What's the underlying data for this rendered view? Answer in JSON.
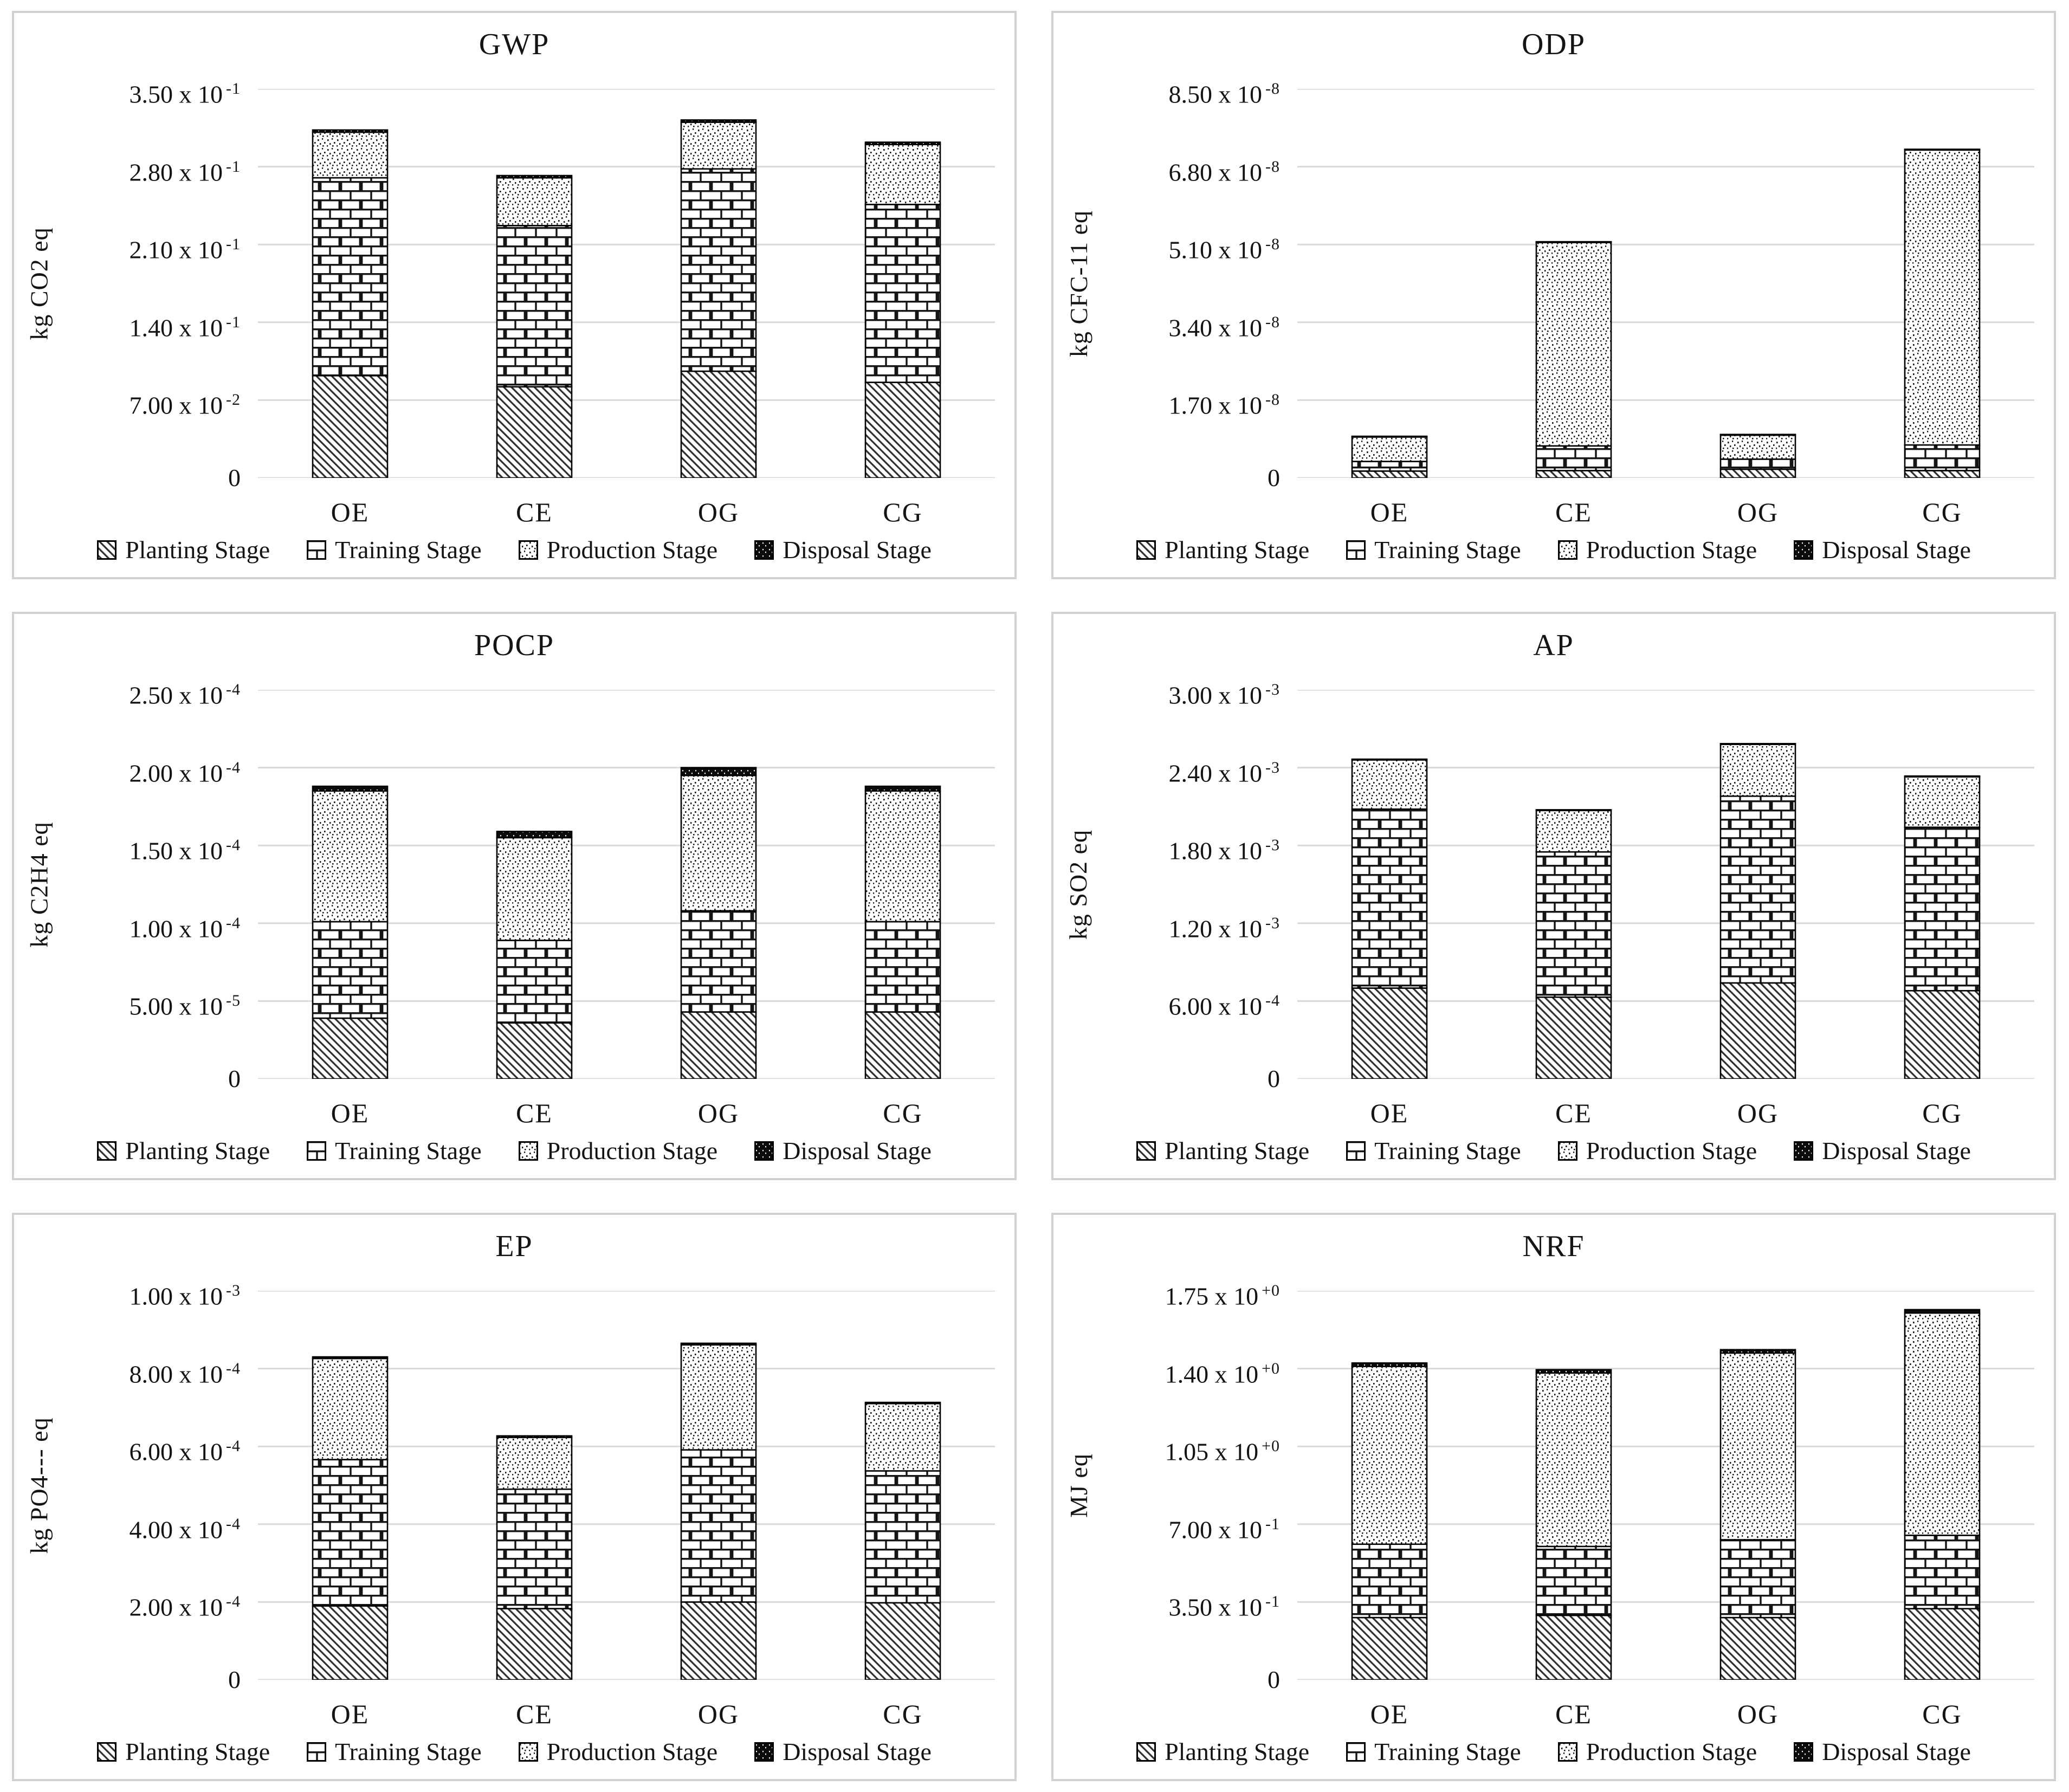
{
  "page": {
    "background": "#ffffff",
    "panel_border_color": "#d2d2d2",
    "grid_color": "#d9d9d9",
    "bar_border_color": "#000000",
    "text_color": "#141414"
  },
  "legend_position": "bottom",
  "categories": [
    "OE",
    "CE",
    "OG",
    "CG"
  ],
  "stage_patterns": {
    "planting": "diagonal-hatch",
    "training": "brick",
    "production": "speckle",
    "disposal": "solid-black"
  },
  "chart_data": [
    {
      "id": "gwp",
      "type": "bar",
      "title": "GWP",
      "ylabel": "kg CO2 eq",
      "grid": true,
      "legend_position": "bottom",
      "ymax": 0.35,
      "ylim": [
        0,
        0.35
      ],
      "categories": [
        "OE",
        "CE",
        "OG",
        "CG"
      ],
      "yticks": [
        {
          "value": 0.35,
          "m": "3.50 x 10",
          "e": "-1"
        },
        {
          "value": 0.28,
          "m": "2.80 x 10",
          "e": "-1"
        },
        {
          "value": 0.21,
          "m": "2.10 x 10",
          "e": "-1"
        },
        {
          "value": 0.14,
          "m": "1.40 x 10",
          "e": "-1"
        },
        {
          "value": 0.07,
          "m": "7.00 x 10",
          "e": "-2"
        },
        {
          "value": 0,
          "m": "0",
          "e": null
        }
      ],
      "series": [
        {
          "name": "Planting Stage",
          "pattern": "diagonal-hatch",
          "values": [
            0.092,
            0.082,
            0.096,
            0.086
          ]
        },
        {
          "name": "Training Stage",
          "pattern": "brick",
          "values": [
            0.178,
            0.145,
            0.182,
            0.16
          ]
        },
        {
          "name": "Production Stage",
          "pattern": "speckle",
          "values": [
            0.041,
            0.043,
            0.042,
            0.054
          ]
        },
        {
          "name": "Disposal Stage",
          "pattern": "solid-black",
          "values": [
            0.002,
            0.002,
            0.002,
            0.002
          ]
        }
      ]
    },
    {
      "id": "odp",
      "type": "bar",
      "title": "ODP",
      "ylabel": "kg CFC-11 eq",
      "grid": true,
      "legend_position": "bottom",
      "ymax": 8.5e-08,
      "ylim": [
        0,
        8.5e-08
      ],
      "categories": [
        "OE",
        "CE",
        "OG",
        "CG"
      ],
      "yticks": [
        {
          "value": 8.5e-08,
          "m": "8.50 x 10",
          "e": "-8"
        },
        {
          "value": 6.8e-08,
          "m": "6.80 x 10",
          "e": "-8"
        },
        {
          "value": 5.1e-08,
          "m": "5.10 x 10",
          "e": "-8"
        },
        {
          "value": 3.4e-08,
          "m": "3.40 x 10",
          "e": "-8"
        },
        {
          "value": 1.7e-08,
          "m": "1.70 x 10",
          "e": "-8"
        },
        {
          "value": 0,
          "m": "0",
          "e": null
        }
      ],
      "series": [
        {
          "name": "Planting Stage",
          "pattern": "diagonal-hatch",
          "values": [
            1.5e-09,
            1.6e-09,
            1.9e-09,
            1.6e-09
          ]
        },
        {
          "name": "Training Stage",
          "pattern": "brick",
          "values": [
            2.1e-09,
            5.4e-09,
            2.2e-09,
            5.6e-09
          ]
        },
        {
          "name": "Production Stage",
          "pattern": "speckle",
          "values": [
            5.4e-09,
            4.45e-08,
            5.3e-09,
            6.45e-08
          ]
        },
        {
          "name": "Disposal Stage",
          "pattern": "solid-black",
          "values": [
            1e-10,
            1e-10,
            1e-10,
            1e-10
          ]
        }
      ]
    },
    {
      "id": "pocp",
      "type": "bar",
      "title": "POCP",
      "ylabel": "kg C2H4 eq",
      "grid": true,
      "legend_position": "bottom",
      "ymax": 0.00025,
      "ylim": [
        0,
        0.00025
      ],
      "categories": [
        "OE",
        "CE",
        "OG",
        "CG"
      ],
      "yticks": [
        {
          "value": 0.00025,
          "m": "2.50 x 10",
          "e": "-4"
        },
        {
          "value": 0.0002,
          "m": "2.00 x 10",
          "e": "-4"
        },
        {
          "value": 0.00015,
          "m": "1.50 x 10",
          "e": "-4"
        },
        {
          "value": 0.0001,
          "m": "1.00 x 10",
          "e": "-4"
        },
        {
          "value": 5e-05,
          "m": "5.00 x 10",
          "e": "-5"
        },
        {
          "value": 0,
          "m": "0",
          "e": null
        }
      ],
      "series": [
        {
          "name": "Planting Stage",
          "pattern": "diagonal-hatch",
          "values": [
            3.9e-05,
            3.6e-05,
            4.3e-05,
            4.3e-05
          ]
        },
        {
          "name": "Training Stage",
          "pattern": "brick",
          "values": [
            6.2e-05,
            5.3e-05,
            6.5e-05,
            5.8e-05
          ]
        },
        {
          "name": "Production Stage",
          "pattern": "speckle",
          "values": [
            8.4e-05,
            6.6e-05,
            8.7e-05,
            8.4e-05
          ]
        },
        {
          "name": "Disposal Stage",
          "pattern": "solid-black",
          "values": [
            3e-06,
            4e-06,
            5e-06,
            3e-06
          ]
        }
      ]
    },
    {
      "id": "ap",
      "type": "bar",
      "title": "AP",
      "ylabel": "kg SO2 eq",
      "grid": true,
      "legend_position": "bottom",
      "ymax": 0.003,
      "ylim": [
        0,
        0.003
      ],
      "categories": [
        "OE",
        "CE",
        "OG",
        "CG"
      ],
      "yticks": [
        {
          "value": 0.003,
          "m": "3.00 x 10",
          "e": "-3"
        },
        {
          "value": 0.0024,
          "m": "2.40 x 10",
          "e": "-3"
        },
        {
          "value": 0.0018,
          "m": "1.80 x 10",
          "e": "-3"
        },
        {
          "value": 0.0012,
          "m": "1.20 x 10",
          "e": "-3"
        },
        {
          "value": 0.0006,
          "m": "6.00 x 10",
          "e": "-4"
        },
        {
          "value": 0,
          "m": "0",
          "e": null
        }
      ],
      "series": [
        {
          "name": "Planting Stage",
          "pattern": "diagonal-hatch",
          "values": [
            0.0007,
            0.00063,
            0.00074,
            0.00068
          ]
        },
        {
          "name": "Training Stage",
          "pattern": "brick",
          "values": [
            0.00138,
            0.00112,
            0.00144,
            0.00126
          ]
        },
        {
          "name": "Production Stage",
          "pattern": "speckle",
          "values": [
            0.00038,
            0.00032,
            0.0004,
            0.00039
          ]
        },
        {
          "name": "Disposal Stage",
          "pattern": "solid-black",
          "values": [
            5e-06,
            5e-06,
            5e-06,
            5e-06
          ]
        }
      ]
    },
    {
      "id": "ep",
      "type": "bar",
      "title": "EP",
      "ylabel": "kg PO4--- eq",
      "grid": true,
      "legend_position": "bottom",
      "ymax": 0.001,
      "ylim": [
        0,
        0.001
      ],
      "categories": [
        "OE",
        "CE",
        "OG",
        "CG"
      ],
      "yticks": [
        {
          "value": 0.001,
          "m": "1.00 x 10",
          "e": "-3"
        },
        {
          "value": 0.0008,
          "m": "8.00 x 10",
          "e": "-4"
        },
        {
          "value": 0.0006,
          "m": "6.00 x 10",
          "e": "-4"
        },
        {
          "value": 0.0004,
          "m": "4.00 x 10",
          "e": "-4"
        },
        {
          "value": 0.0002,
          "m": "2.00 x 10",
          "e": "-4"
        },
        {
          "value": 0,
          "m": "0",
          "e": null
        }
      ],
      "series": [
        {
          "name": "Planting Stage",
          "pattern": "diagonal-hatch",
          "values": [
            0.00019,
            0.000183,
            0.0002,
            0.000198
          ]
        },
        {
          "name": "Training Stage",
          "pattern": "brick",
          "values": [
            0.000376,
            0.000307,
            0.000391,
            0.000339
          ]
        },
        {
          "name": "Production Stage",
          "pattern": "speckle",
          "values": [
            0.00026,
            0.000133,
            0.00027,
            0.000173
          ]
        },
        {
          "name": "Disposal Stage",
          "pattern": "solid-black",
          "values": [
            4e-06,
            4e-06,
            4e-06,
            3e-06
          ]
        }
      ]
    },
    {
      "id": "nrf",
      "type": "bar",
      "title": "NRF",
      "ylabel": "MJ eq",
      "grid": true,
      "legend_position": "bottom",
      "ymax": 1.75,
      "ylim": [
        0,
        1.75
      ],
      "categories": [
        "OE",
        "CE",
        "OG",
        "CG"
      ],
      "yticks": [
        {
          "value": 1.75,
          "m": "1.75 x 10",
          "e": "+0"
        },
        {
          "value": 1.4,
          "m": "1.40 x 10",
          "e": "+0"
        },
        {
          "value": 1.05,
          "m": "1.05 x 10",
          "e": "+0"
        },
        {
          "value": 0.7,
          "m": "7.00 x 10",
          "e": "-1"
        },
        {
          "value": 0.35,
          "m": "3.50 x 10",
          "e": "-1"
        },
        {
          "value": 0,
          "m": "0",
          "e": null
        }
      ],
      "series": [
        {
          "name": "Planting Stage",
          "pattern": "diagonal-hatch",
          "values": [
            0.28,
            0.29,
            0.28,
            0.32
          ]
        },
        {
          "name": "Training Stage",
          "pattern": "brick",
          "values": [
            0.33,
            0.31,
            0.35,
            0.33
          ]
        },
        {
          "name": "Production Stage",
          "pattern": "speckle",
          "values": [
            0.8,
            0.78,
            0.84,
            1.0
          ]
        },
        {
          "name": "Disposal Stage",
          "pattern": "solid-black",
          "values": [
            0.015,
            0.015,
            0.015,
            0.015
          ]
        }
      ]
    }
  ]
}
